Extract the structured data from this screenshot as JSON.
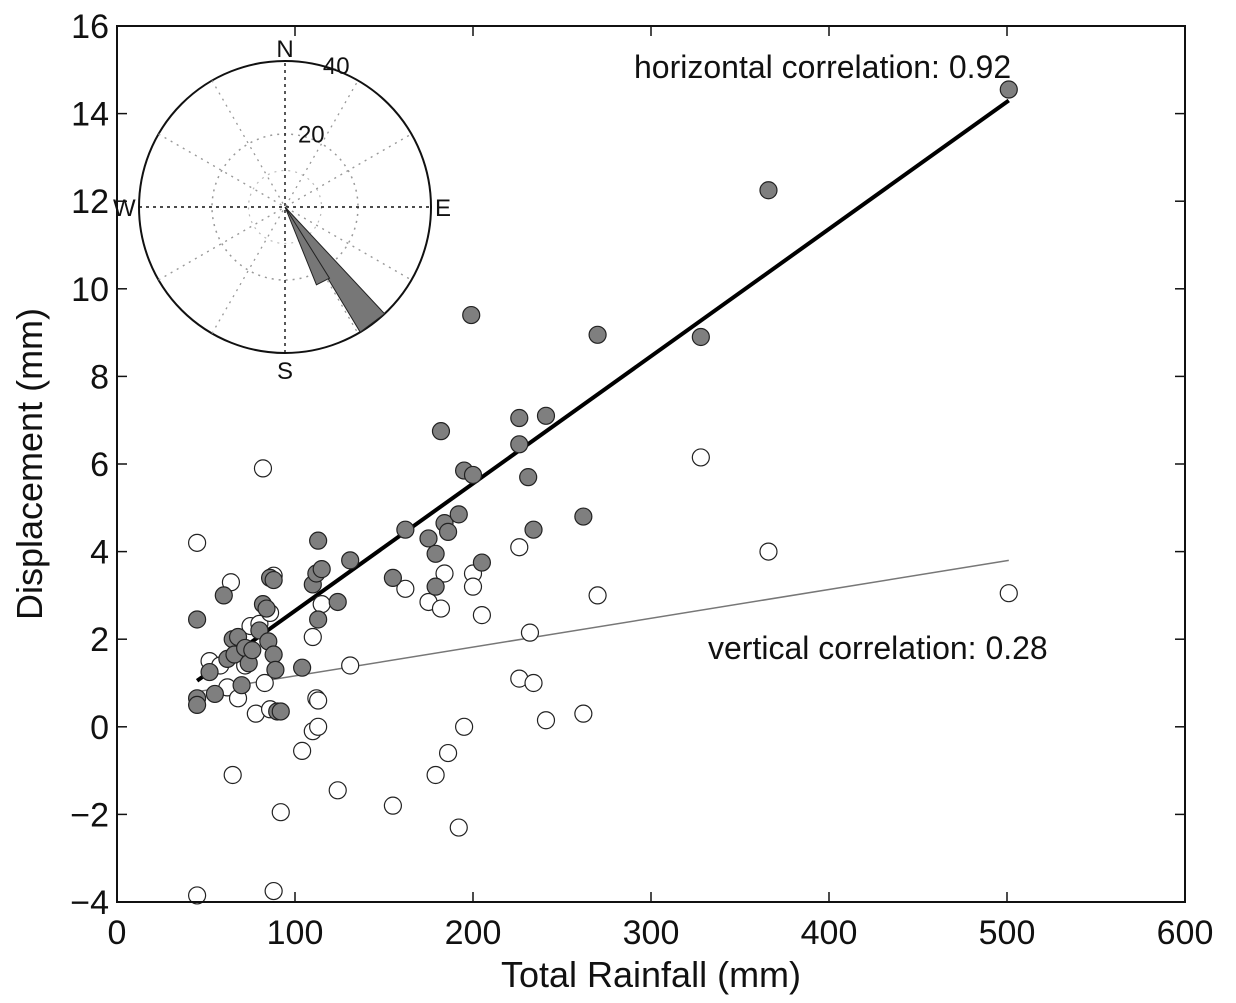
{
  "chart_data": {
    "type": "scatter",
    "title": "",
    "xlabel": "Total Rainfall (mm)",
    "ylabel": "Displacement (mm)",
    "xlim": [
      0,
      600
    ],
    "ylim": [
      -4,
      16
    ],
    "xticks": [
      "0",
      "100",
      "200",
      "300",
      "400",
      "500",
      "600"
    ],
    "yticks": [
      "−4",
      "−2",
      "0",
      "2",
      "4",
      "6",
      "8",
      "10",
      "12",
      "14",
      "16"
    ],
    "grid": false,
    "annotations": {
      "horizontal": "horizontal correlation: 0.92",
      "vertical": "vertical correlation: 0.28"
    },
    "series": [
      {
        "marker": "filled-circle",
        "color": "#7f7f7f",
        "points": [
          [
            45,
            2.45
          ],
          [
            45,
            0.65
          ],
          [
            45,
            0.5
          ],
          [
            52,
            1.25
          ],
          [
            55,
            0.75
          ],
          [
            60,
            3.0
          ],
          [
            62,
            1.55
          ],
          [
            65,
            2.0
          ],
          [
            66,
            1.65
          ],
          [
            68,
            2.05
          ],
          [
            70,
            0.95
          ],
          [
            72,
            1.8
          ],
          [
            74,
            1.45
          ],
          [
            76,
            1.75
          ],
          [
            80,
            2.2
          ],
          [
            82,
            2.8
          ],
          [
            84,
            2.7
          ],
          [
            85,
            1.95
          ],
          [
            86,
            3.4
          ],
          [
            88,
            3.35
          ],
          [
            88,
            1.65
          ],
          [
            89,
            1.3
          ],
          [
            90,
            0.35
          ],
          [
            92,
            0.35
          ],
          [
            104,
            1.35
          ],
          [
            110,
            3.25
          ],
          [
            112,
            3.5
          ],
          [
            113,
            2.45
          ],
          [
            113,
            4.25
          ],
          [
            115,
            3.6
          ],
          [
            124,
            2.85
          ],
          [
            131,
            3.8
          ],
          [
            155,
            3.4
          ],
          [
            162,
            4.5
          ],
          [
            175,
            4.3
          ],
          [
            179,
            3.95
          ],
          [
            179,
            3.2
          ],
          [
            182,
            6.75
          ],
          [
            184,
            4.65
          ],
          [
            186,
            4.45
          ],
          [
            192,
            4.85
          ],
          [
            195,
            5.85
          ],
          [
            199,
            9.4
          ],
          [
            200,
            5.75
          ],
          [
            205,
            3.75
          ],
          [
            226,
            7.05
          ],
          [
            226,
            6.45
          ],
          [
            231,
            5.7
          ],
          [
            234,
            4.5
          ],
          [
            241,
            7.1
          ],
          [
            262,
            4.8
          ],
          [
            270,
            8.95
          ],
          [
            328,
            8.9
          ],
          [
            366,
            12.25
          ],
          [
            501,
            14.55
          ]
        ]
      },
      {
        "marker": "open-circle",
        "color": "#ffffff",
        "points": [
          [
            45,
            4.2
          ],
          [
            45,
            -3.85
          ],
          [
            52,
            1.5
          ],
          [
            58,
            1.4
          ],
          [
            62,
            0.9
          ],
          [
            64,
            3.3
          ],
          [
            65,
            -1.1
          ],
          [
            68,
            1.95
          ],
          [
            68,
            0.65
          ],
          [
            72,
            1.4
          ],
          [
            75,
            2.3
          ],
          [
            78,
            0.3
          ],
          [
            80,
            2.35
          ],
          [
            82,
            5.9
          ],
          [
            83,
            1.0
          ],
          [
            86,
            2.6
          ],
          [
            86,
            0.4
          ],
          [
            88,
            3.45
          ],
          [
            88,
            -3.75
          ],
          [
            92,
            -1.95
          ],
          [
            104,
            -0.55
          ],
          [
            110,
            2.05
          ],
          [
            110,
            -0.1
          ],
          [
            112,
            0.65
          ],
          [
            113,
            0.6
          ],
          [
            113,
            0.0
          ],
          [
            115,
            2.8
          ],
          [
            124,
            -1.45
          ],
          [
            131,
            1.4
          ],
          [
            155,
            -1.8
          ],
          [
            162,
            3.15
          ],
          [
            175,
            2.85
          ],
          [
            179,
            -1.1
          ],
          [
            182,
            2.7
          ],
          [
            184,
            3.5
          ],
          [
            186,
            -0.6
          ],
          [
            192,
            -2.3
          ],
          [
            195,
            0.0
          ],
          [
            200,
            3.5
          ],
          [
            200,
            3.2
          ],
          [
            205,
            2.55
          ],
          [
            226,
            4.1
          ],
          [
            226,
            1.1
          ],
          [
            232,
            2.15
          ],
          [
            234,
            1.0
          ],
          [
            241,
            0.15
          ],
          [
            262,
            0.3
          ],
          [
            270,
            3.0
          ],
          [
            328,
            6.15
          ],
          [
            366,
            4.0
          ],
          [
            501,
            3.05
          ]
        ]
      }
    ],
    "fit_lines": [
      {
        "style": "thick",
        "x": [
          45,
          501
        ],
        "y": [
          1.05,
          14.3
        ]
      },
      {
        "style": "thin",
        "x": [
          45,
          501
        ],
        "y": [
          0.8,
          3.8
        ]
      }
    ],
    "inset": {
      "type": "polar-rose",
      "direction_labels": [
        "N",
        "S",
        "E",
        "W"
      ],
      "radial_max": 40,
      "radial_ticks": [
        20,
        40
      ],
      "radial_tick_labels": [
        "20",
        "40"
      ],
      "wedges": [
        {
          "from_deg": 137,
          "to_deg": 149,
          "value": 40
        },
        {
          "from_deg": 148,
          "to_deg": 158,
          "value": 23
        }
      ]
    }
  }
}
